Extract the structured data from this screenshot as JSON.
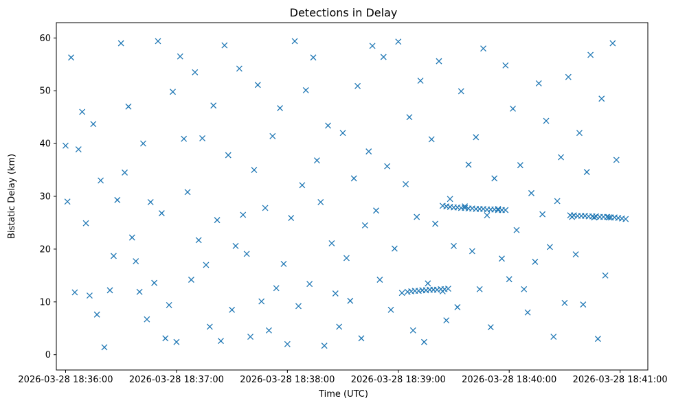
{
  "chart_data": {
    "type": "scatter",
    "title": "Detections in Delay",
    "xlabel": "Time (UTC)",
    "ylabel": "Bistatic Delay (km)",
    "marker": "x",
    "color": "#1f77b4",
    "grid": false,
    "legend": "none",
    "x_ticks": [
      "2026-03-28 18:36:00",
      "2026-03-28 18:37:00",
      "2026-03-28 18:38:00",
      "2026-03-28 18:39:00",
      "2026-03-28 18:40:00",
      "2026-03-28 18:41:00"
    ],
    "xlim": [
      "2026-03-28 18:35:55",
      "2026-03-28 18:41:15"
    ],
    "y_ticks": [
      0,
      10,
      20,
      30,
      40,
      50,
      60
    ],
    "ylim": [
      -2.9,
      62.9
    ],
    "series": [
      {
        "x": [
          "2026-03-28 18:36:00",
          "2026-03-28 18:36:01",
          "2026-03-28 18:36:03",
          "2026-03-28 18:36:05",
          "2026-03-28 18:36:07",
          "2026-03-28 18:36:09",
          "2026-03-28 18:36:11",
          "2026-03-28 18:36:13",
          "2026-03-28 18:36:15",
          "2026-03-28 18:36:17",
          "2026-03-28 18:36:19",
          "2026-03-28 18:36:21",
          "2026-03-28 18:36:24",
          "2026-03-28 18:36:26",
          "2026-03-28 18:36:28",
          "2026-03-28 18:36:30",
          "2026-03-28 18:36:32",
          "2026-03-28 18:36:34",
          "2026-03-28 18:36:36",
          "2026-03-28 18:36:38",
          "2026-03-28 18:36:40",
          "2026-03-28 18:36:42",
          "2026-03-28 18:36:44",
          "2026-03-28 18:36:46",
          "2026-03-28 18:36:48",
          "2026-03-28 18:36:50",
          "2026-03-28 18:36:52",
          "2026-03-28 18:36:54",
          "2026-03-28 18:36:56",
          "2026-03-28 18:36:58",
          "2026-03-28 18:37:00",
          "2026-03-28 18:37:02",
          "2026-03-28 18:37:04",
          "2026-03-28 18:37:06",
          "2026-03-28 18:37:08",
          "2026-03-28 18:37:10",
          "2026-03-28 18:37:12",
          "2026-03-28 18:37:14",
          "2026-03-28 18:37:16",
          "2026-03-28 18:37:18",
          "2026-03-28 18:37:20",
          "2026-03-28 18:37:22",
          "2026-03-28 18:37:24",
          "2026-03-28 18:37:26",
          "2026-03-28 18:37:28",
          "2026-03-28 18:37:30",
          "2026-03-28 18:37:32",
          "2026-03-28 18:37:34",
          "2026-03-28 18:37:36",
          "2026-03-28 18:37:38",
          "2026-03-28 18:37:40",
          "2026-03-28 18:37:42",
          "2026-03-28 18:37:44",
          "2026-03-28 18:37:46",
          "2026-03-28 18:37:48",
          "2026-03-28 18:37:50",
          "2026-03-28 18:37:52",
          "2026-03-28 18:37:54",
          "2026-03-28 18:37:56",
          "2026-03-28 18:37:58",
          "2026-03-28 18:38:00",
          "2026-03-28 18:38:02",
          "2026-03-28 18:38:04",
          "2026-03-28 18:38:06",
          "2026-03-28 18:38:08",
          "2026-03-28 18:38:10",
          "2026-03-28 18:38:12",
          "2026-03-28 18:38:14",
          "2026-03-28 18:38:16",
          "2026-03-28 18:38:18",
          "2026-03-28 18:38:20",
          "2026-03-28 18:38:22",
          "2026-03-28 18:38:24",
          "2026-03-28 18:38:26",
          "2026-03-28 18:38:28",
          "2026-03-28 18:38:30",
          "2026-03-28 18:38:32",
          "2026-03-28 18:38:34",
          "2026-03-28 18:38:36",
          "2026-03-28 18:38:38",
          "2026-03-28 18:38:40",
          "2026-03-28 18:38:42",
          "2026-03-28 18:38:44",
          "2026-03-28 18:38:46",
          "2026-03-28 18:38:48",
          "2026-03-28 18:38:50",
          "2026-03-28 18:38:52",
          "2026-03-28 18:38:54",
          "2026-03-28 18:38:56",
          "2026-03-28 18:38:58",
          "2026-03-28 18:39:00",
          "2026-03-28 18:39:02",
          "2026-03-28 18:39:04",
          "2026-03-28 18:39:06",
          "2026-03-28 18:39:08",
          "2026-03-28 18:39:10",
          "2026-03-28 18:39:12",
          "2026-03-28 18:39:14",
          "2026-03-28 18:39:16",
          "2026-03-28 18:39:18",
          "2026-03-28 18:39:20",
          "2026-03-28 18:39:22",
          "2026-03-28 18:39:24",
          "2026-03-28 18:39:26",
          "2026-03-28 18:39:28",
          "2026-03-28 18:39:30",
          "2026-03-28 18:39:32",
          "2026-03-28 18:39:34",
          "2026-03-28 18:39:36",
          "2026-03-28 18:39:38",
          "2026-03-28 18:39:40",
          "2026-03-28 18:39:42",
          "2026-03-28 18:39:44",
          "2026-03-28 18:39:46",
          "2026-03-28 18:39:48",
          "2026-03-28 18:39:50",
          "2026-03-28 18:39:52",
          "2026-03-28 18:39:54",
          "2026-03-28 18:39:56",
          "2026-03-28 18:39:58",
          "2026-03-28 18:40:00",
          "2026-03-28 18:40:02",
          "2026-03-28 18:40:04",
          "2026-03-28 18:40:06",
          "2026-03-28 18:40:08",
          "2026-03-28 18:40:10",
          "2026-03-28 18:40:12",
          "2026-03-28 18:40:14",
          "2026-03-28 18:40:16",
          "2026-03-28 18:40:18",
          "2026-03-28 18:40:20",
          "2026-03-28 18:40:22",
          "2026-03-28 18:40:24",
          "2026-03-28 18:40:26",
          "2026-03-28 18:40:28",
          "2026-03-28 18:40:30",
          "2026-03-28 18:40:32",
          "2026-03-28 18:40:34",
          "2026-03-28 18:40:36",
          "2026-03-28 18:40:38",
          "2026-03-28 18:40:40",
          "2026-03-28 18:40:42",
          "2026-03-28 18:40:44",
          "2026-03-28 18:40:46",
          "2026-03-28 18:40:48",
          "2026-03-28 18:40:50",
          "2026-03-28 18:40:52",
          "2026-03-28 18:40:54",
          "2026-03-28 18:40:56",
          "2026-03-28 18:40:58"
        ],
        "y": [
          39.6,
          29,
          56.3,
          11.8,
          38.9,
          46,
          24.9,
          11.2,
          43.7,
          7.6,
          33,
          1.4,
          12.2,
          18.7,
          29.3,
          59,
          34.5,
          47,
          22.2,
          17.7,
          11.9,
          40,
          6.7,
          28.9,
          13.6,
          59.4,
          26.8,
          3.1,
          9.4,
          49.8,
          2.4,
          56.5,
          40.9,
          30.8,
          14.2,
          53.5,
          21.7,
          41,
          17,
          5.3,
          47.2,
          25.5,
          2.6,
          58.6,
          37.8,
          8.5,
          20.6,
          54.2,
          26.5,
          19.1,
          3.4,
          35,
          51.1,
          10.1,
          27.8,
          4.6,
          41.4,
          12.6,
          46.7,
          17.2,
          2,
          25.9,
          59.4,
          9.2,
          32.1,
          50.1,
          13.4,
          56.3,
          36.8,
          28.9,
          1.7,
          43.4,
          21.1,
          11.6,
          5.3,
          42,
          18.3,
          10.2,
          33.4,
          50.9,
          3.1,
          24.5,
          38.5,
          58.5,
          27.3,
          14.2,
          56.4,
          35.7,
          8.5,
          20.1,
          59.3,
          11.7,
          32.3,
          45,
          4.6,
          26.1,
          51.9,
          2.4,
          13.5,
          40.8,
          24.8,
          55.6,
          12,
          6.5,
          29.5,
          20.6,
          9,
          49.9,
          28.1,
          36,
          19.6,
          41.2,
          12.4,
          58,
          26.4,
          5.2,
          33.4,
          27.6,
          18.2,
          54.8,
          14.3,
          46.6,
          23.6,
          35.9,
          12.4,
          8,
          30.6,
          17.6,
          51.4,
          26.6,
          44.3,
          20.4,
          3.4,
          29.1,
          37.4,
          9.8,
          52.6,
          26.1,
          19,
          42,
          9.5,
          34.6,
          56.8,
          26,
          3,
          48.5,
          15,
          26,
          59,
          36.9
        ]
      }
    ],
    "tracks": [
      {
        "x": [
          "2026-03-28 18:39:05",
          "2026-03-28 18:39:07",
          "2026-03-28 18:39:09",
          "2026-03-28 18:39:11",
          "2026-03-28 18:39:13",
          "2026-03-28 18:39:15",
          "2026-03-28 18:39:17",
          "2026-03-28 18:39:19",
          "2026-03-28 18:39:21",
          "2026-03-28 18:39:23",
          "2026-03-28 18:39:25",
          "2026-03-28 18:39:27"
        ],
        "y": [
          11.9,
          12,
          12.1,
          12.1,
          12.2,
          12.2,
          12.3,
          12.3,
          12.3,
          12.4,
          12.4,
          12.5
        ]
      },
      {
        "x": [
          "2026-03-28 18:39:24",
          "2026-03-28 18:39:26",
          "2026-03-28 18:39:28",
          "2026-03-28 18:39:30",
          "2026-03-28 18:39:32",
          "2026-03-28 18:39:34",
          "2026-03-28 18:39:36",
          "2026-03-28 18:39:38",
          "2026-03-28 18:39:40",
          "2026-03-28 18:39:42",
          "2026-03-28 18:39:44",
          "2026-03-28 18:39:46",
          "2026-03-28 18:39:48",
          "2026-03-28 18:39:50",
          "2026-03-28 18:39:52",
          "2026-03-28 18:39:54",
          "2026-03-28 18:39:56",
          "2026-03-28 18:39:58"
        ],
        "y": [
          28.2,
          28.1,
          28,
          27.9,
          27.9,
          27.8,
          27.8,
          27.7,
          27.7,
          27.6,
          27.6,
          27.6,
          27.5,
          27.5,
          27.5,
          27.4,
          27.4,
          27.4
        ]
      },
      {
        "x": [
          "2026-03-28 18:40:33",
          "2026-03-28 18:40:35",
          "2026-03-28 18:40:37",
          "2026-03-28 18:40:39",
          "2026-03-28 18:40:41",
          "2026-03-28 18:40:43",
          "2026-03-28 18:40:45",
          "2026-03-28 18:40:47",
          "2026-03-28 18:40:49",
          "2026-03-28 18:40:51",
          "2026-03-28 18:40:53",
          "2026-03-28 18:40:55",
          "2026-03-28 18:40:57",
          "2026-03-28 18:40:59",
          "2026-03-28 18:41:01",
          "2026-03-28 18:41:03"
        ],
        "y": [
          26.4,
          26.4,
          26.3,
          26.3,
          26.3,
          26.2,
          26.2,
          26.2,
          26.1,
          26.1,
          26.1,
          26,
          26,
          25.9,
          25.8,
          25.7
        ]
      }
    ]
  }
}
